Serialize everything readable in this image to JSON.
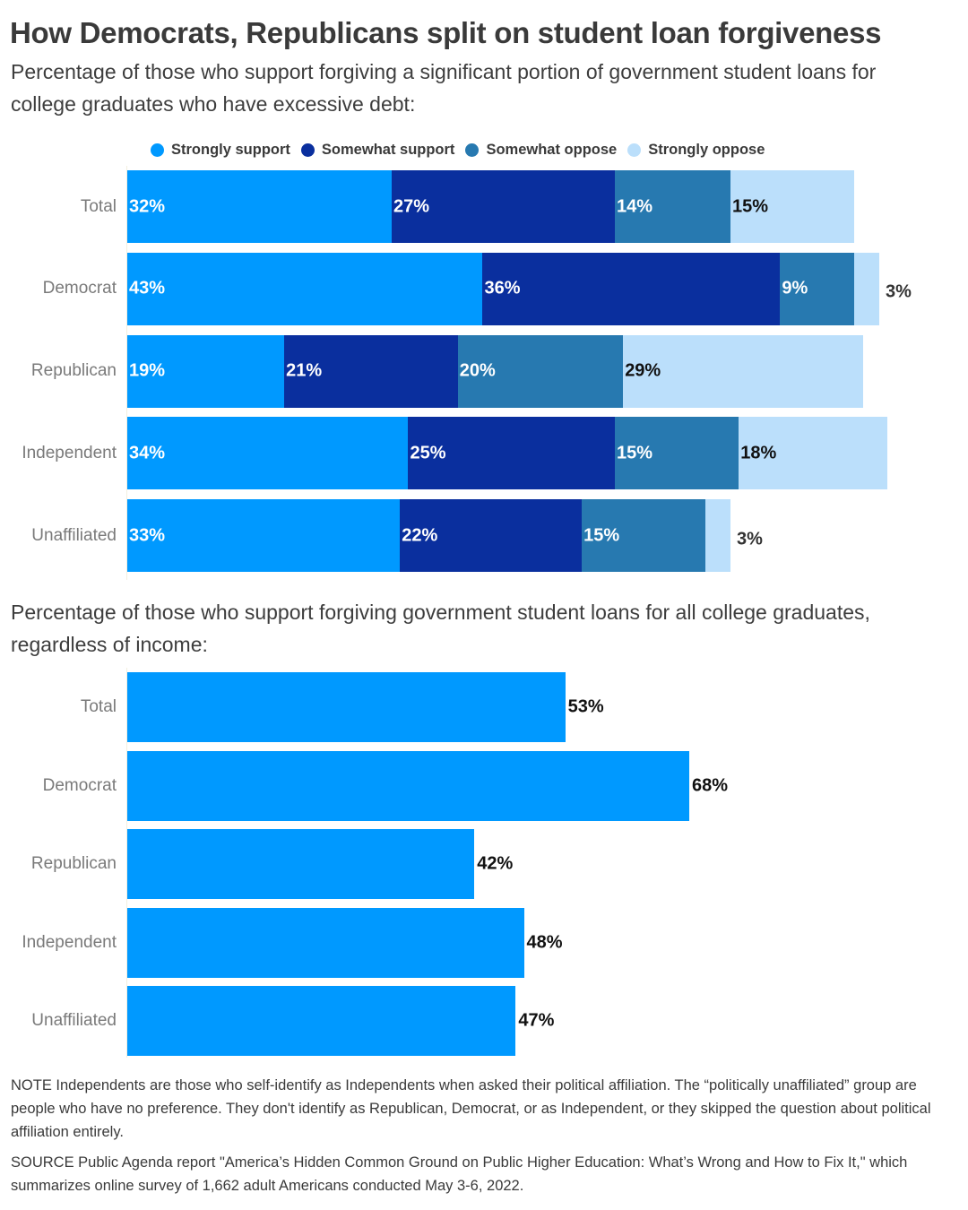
{
  "title": "How Democrats, Republicans split on student loan forgiveness",
  "subtitle_1": "Percentage of those who support forgiving a significant portion of government student loans for college graduates who have excessive debt:",
  "subtitle_2": "Percentage of those who support forgiving government student loans for all college graduates, regardless of income:",
  "note": "NOTE Independents are those who self-identify as Independents when asked their political affiliation. The “politically unaffiliated” group are people who have no preference. They don't identify as Republican, Democrat, or as Independent, or they skipped the question about political affiliation entirely.",
  "source": "SOURCE Public Agenda report \"America’s Hidden Common Ground on Public Higher Education: What’s Wrong and How to Fix It,\" which summarizes online survey of 1,662 adult Americans conducted May 3-6, 2022.",
  "chart_data": [
    {
      "type": "bar",
      "orientation": "horizontal",
      "stacked": true,
      "title": "Percentage of those who support forgiving a significant portion of government student loans for college graduates who have excessive debt:",
      "categories": [
        "Total",
        "Democrat",
        "Republican",
        "Independent",
        "Unaffiliated"
      ],
      "series": [
        {
          "name": "Strongly support",
          "color": "#0099ff",
          "label_color": "#ffffff",
          "values": [
            32,
            43,
            19,
            34,
            33
          ]
        },
        {
          "name": "Somewhat support",
          "color": "#0a2f9e",
          "label_color": "#ffffff",
          "values": [
            27,
            36,
            21,
            25,
            22
          ]
        },
        {
          "name": "Somewhat oppose",
          "color": "#2779b0",
          "label_color": "#ffffff",
          "values": [
            14,
            9,
            20,
            15,
            15
          ]
        },
        {
          "name": "Strongly oppose",
          "color": "#bbdffb",
          "label_color": "#111111",
          "values": [
            15,
            3,
            29,
            18,
            3
          ]
        }
      ],
      "value_suffix": "%",
      "legend": "top",
      "xlim": [
        0,
        100
      ],
      "grid": false
    },
    {
      "type": "bar",
      "orientation": "horizontal",
      "stacked": false,
      "title": "Percentage of those who support forgiving government student loans for all college graduates, regardless of income:",
      "categories": [
        "Total",
        "Democrat",
        "Republican",
        "Independent",
        "Unaffiliated"
      ],
      "values": [
        53,
        68,
        42,
        48,
        47
      ],
      "color": "#0099ff",
      "value_suffix": "%",
      "xlim": [
        0,
        100
      ],
      "grid": false
    }
  ]
}
